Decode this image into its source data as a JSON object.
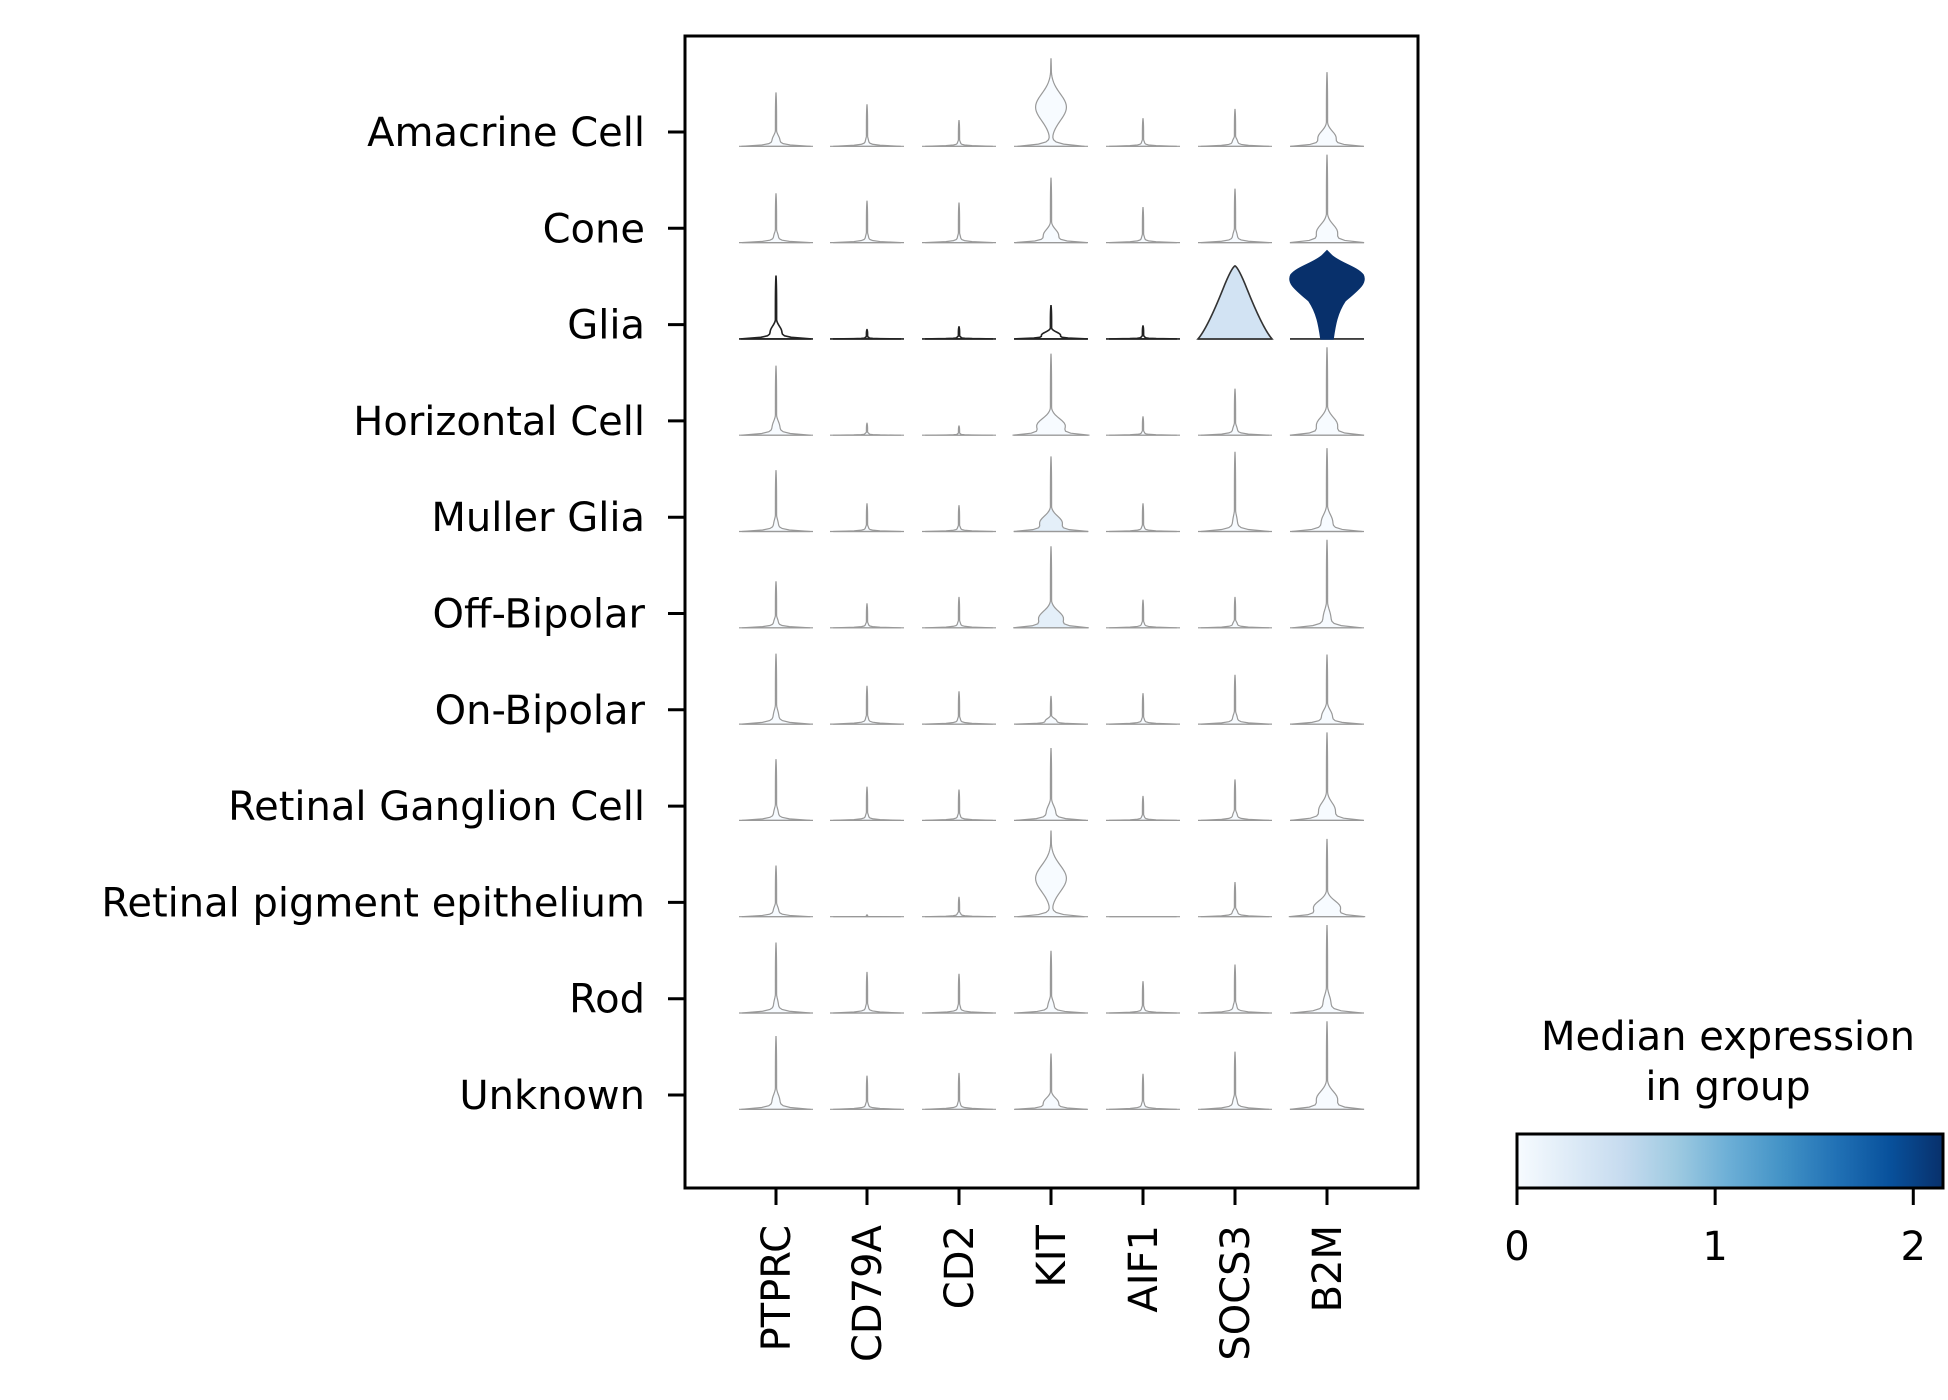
{
  "chart_data": {
    "type": "stacked-violin",
    "title": "",
    "xlabel": "",
    "ylabel": "",
    "genes": [
      "PTPRC",
      "CD79A",
      "CD2",
      "KIT",
      "AIF1",
      "SOCS3",
      "B2M"
    ],
    "groups": [
      "Amacrine Cell",
      "Cone",
      "Glia",
      "Horizontal Cell",
      "Muller Glia",
      "Off-Bipolar",
      "On-Bipolar",
      "Retinal Ganglion Cell",
      "Retinal pigment epithelium",
      "Rod",
      "Unknown"
    ],
    "median_expression": [
      [
        0,
        0,
        0,
        0,
        0,
        0,
        0
      ],
      [
        0,
        0,
        0,
        0,
        0,
        0,
        0
      ],
      [
        2.15,
        2.15,
        2.15,
        2.15,
        2.15,
        0.4,
        2.15
      ],
      [
        0,
        0,
        0,
        0,
        0,
        0,
        0
      ],
      [
        0,
        0,
        0,
        0.2,
        0,
        0,
        0
      ],
      [
        0,
        0,
        0,
        0.2,
        0,
        0,
        0
      ],
      [
        0,
        0,
        0,
        0,
        0,
        0,
        0
      ],
      [
        0,
        0,
        0,
        0,
        0,
        0,
        0
      ],
      [
        0,
        0,
        0,
        0,
        0,
        0,
        0
      ],
      [
        0,
        0,
        0,
        0,
        0,
        0,
        0
      ],
      [
        0,
        0,
        0,
        0,
        0,
        0,
        0
      ]
    ],
    "violin_heights": [
      [
        0.58,
        0.45,
        0.28,
        0.95,
        0.3,
        0.4,
        0.8
      ],
      [
        0.53,
        0.45,
        0.43,
        0.7,
        0.38,
        0.58,
        0.95
      ],
      [
        0.68,
        0.1,
        0.13,
        0.36,
        0.14,
        0.79,
        0.9
      ],
      [
        0.75,
        0.13,
        0.1,
        0.88,
        0.2,
        0.5,
        0.95
      ],
      [
        0.66,
        0.3,
        0.28,
        0.81,
        0.3,
        0.86,
        0.9
      ],
      [
        0.5,
        0.26,
        0.33,
        0.88,
        0.3,
        0.33,
        0.95
      ],
      [
        0.76,
        0.41,
        0.35,
        0.3,
        0.33,
        0.53,
        0.75
      ],
      [
        0.66,
        0.36,
        0.33,
        0.78,
        0.26,
        0.44,
        0.95
      ],
      [
        0.55,
        0.02,
        0.21,
        0.93,
        0.0,
        0.37,
        0.84
      ],
      [
        0.76,
        0.44,
        0.42,
        0.67,
        0.34,
        0.52,
        0.95
      ],
      [
        0.79,
        0.36,
        0.39,
        0.6,
        0.38,
        0.62,
        0.95
      ]
    ],
    "violin_widths": [
      [
        0.1,
        0.04,
        0.04,
        0.42,
        0.04,
        0.07,
        0.24
      ],
      [
        0.06,
        0.04,
        0.04,
        0.2,
        0.04,
        0.06,
        0.28
      ],
      [
        0.15,
        0.05,
        0.05,
        0.25,
        0.05,
        0.6,
        0.85
      ],
      [
        0.1,
        0.05,
        0.04,
        0.38,
        0.04,
        0.06,
        0.28
      ],
      [
        0.06,
        0.04,
        0.04,
        0.3,
        0.04,
        0.06,
        0.15
      ],
      [
        0.06,
        0.04,
        0.04,
        0.33,
        0.04,
        0.06,
        0.1
      ],
      [
        0.07,
        0.04,
        0.04,
        0.15,
        0.04,
        0.06,
        0.14
      ],
      [
        0.06,
        0.04,
        0.04,
        0.12,
        0.04,
        0.06,
        0.22
      ],
      [
        0.07,
        0.03,
        0.05,
        0.42,
        0.02,
        0.07,
        0.36
      ],
      [
        0.06,
        0.04,
        0.04,
        0.08,
        0.04,
        0.05,
        0.1
      ],
      [
        0.1,
        0.04,
        0.04,
        0.2,
        0.04,
        0.06,
        0.28
      ]
    ],
    "colorbar": {
      "title_line1": "Median expression",
      "title_line2": "in group",
      "ticks": [
        "0",
        "1",
        "2"
      ],
      "tick_values": [
        0,
        1,
        2
      ],
      "range": [
        0,
        2.15
      ],
      "colormap": "Blues",
      "colormap_stops": [
        "#f7fbff",
        "#deebf7",
        "#c6dbef",
        "#9ecae1",
        "#6baed6",
        "#4292c6",
        "#2171b5",
        "#08519c",
        "#08306b"
      ]
    }
  }
}
